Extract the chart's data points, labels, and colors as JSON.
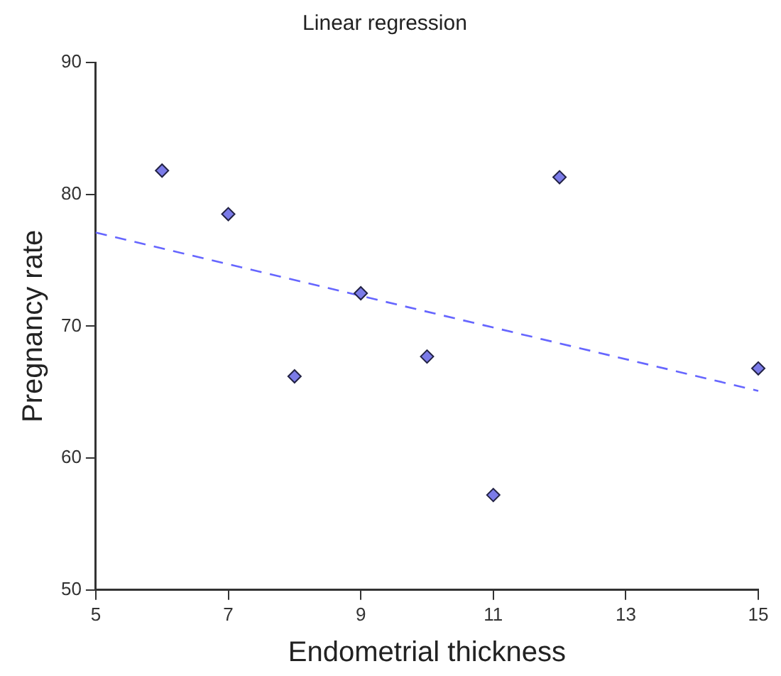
{
  "chart_data": {
    "type": "scatter",
    "title": "Linear regression",
    "xlabel": "Endometrial thickness",
    "ylabel": "Pregnancy rate",
    "xlim": [
      5,
      15
    ],
    "xticks": [
      5,
      7,
      9,
      11,
      13,
      15
    ],
    "ylim": [
      50,
      90
    ],
    "yticks": [
      50,
      60,
      70,
      80,
      90
    ],
    "grid": false,
    "legend": false,
    "marker": "diamond",
    "series": [
      {
        "color": "#7b7be8",
        "x": [
          6,
          7,
          8,
          9,
          10,
          11,
          12,
          15
        ],
        "values": [
          81.8,
          78.5,
          66.2,
          72.5,
          67.7,
          57.2,
          81.3,
          66.8
        ]
      },
      {
        "type": "line",
        "color": "#6666ff",
        "line_style": "dashed",
        "marker": "none",
        "x": [
          5,
          15
        ],
        "values": [
          77.1,
          65.1
        ]
      }
    ]
  }
}
